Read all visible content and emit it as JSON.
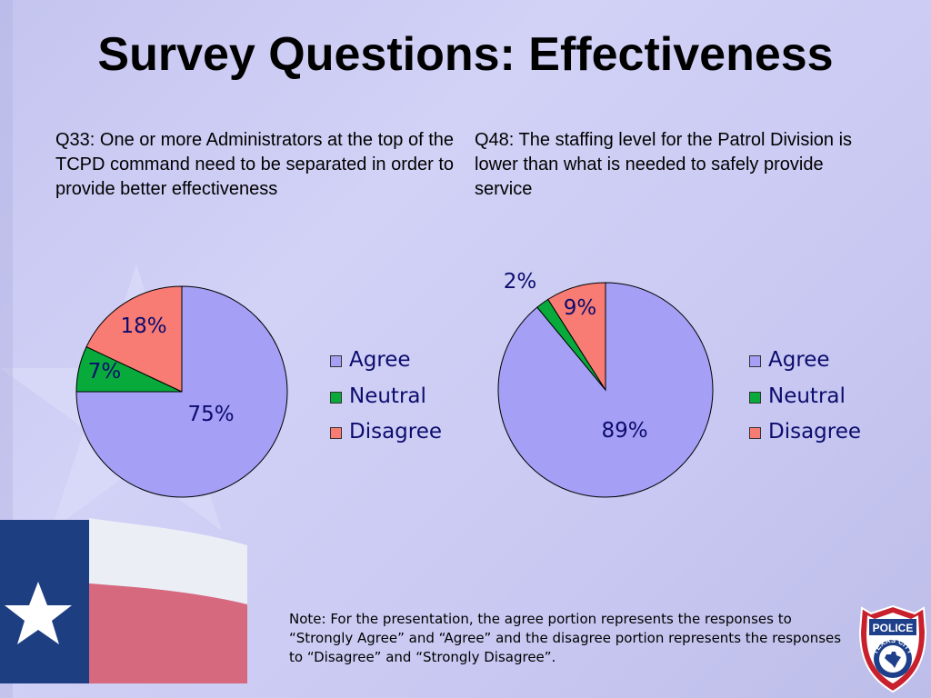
{
  "slide": {
    "title": "Survey Questions: Effectiveness",
    "note": "Note: For the presentation, the agree portion represents the responses to “Strongly Agree” and “Agree” and the disagree portion represents the responses to “Disagree” and “Strongly Disagree”.",
    "badge": {
      "top_text": "POLICE",
      "ring_text": "TEXAS CITY"
    }
  },
  "colors": {
    "agree": "#a59ff5",
    "neutral": "#08aa3c",
    "disagree": "#f87c74",
    "label": "#0c0c6e"
  },
  "chart_data": [
    {
      "type": "pie",
      "title": "Q33: One or more Administrators at the top of the TCPD command need to be separated in order to provide better effectiveness",
      "categories": [
        "Agree",
        "Neutral",
        "Disagree"
      ],
      "values": [
        75,
        7,
        18
      ],
      "value_labels": [
        "75%",
        "7%",
        "18%"
      ],
      "legend": [
        "Agree",
        "Neutral",
        "Disagree"
      ],
      "legend_position": "right"
    },
    {
      "type": "pie",
      "title": "Q48: The staffing level for the Patrol Division is lower than what is needed to safely provide service",
      "categories": [
        "Agree",
        "Neutral",
        "Disagree"
      ],
      "values": [
        89,
        2,
        9
      ],
      "value_labels": [
        "89%",
        "2%",
        "9%"
      ],
      "legend": [
        "Agree",
        "Neutral",
        "Disagree"
      ],
      "legend_position": "right"
    }
  ]
}
